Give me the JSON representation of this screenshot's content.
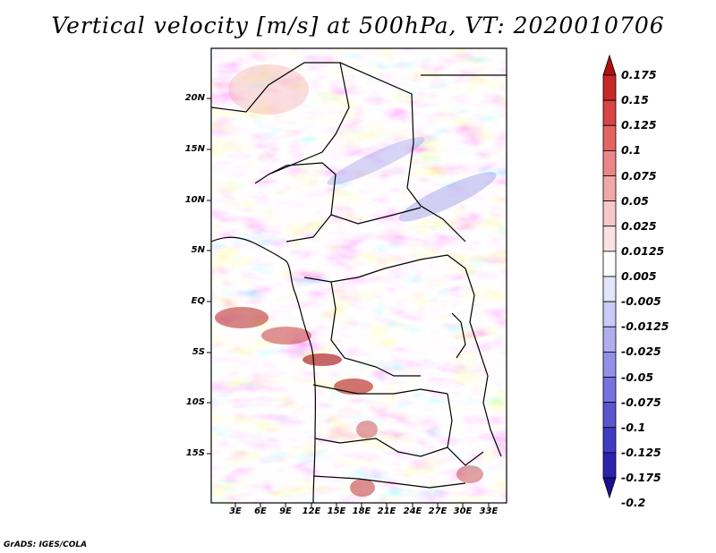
{
  "title": "Vertical velocity [m/s] at 500hPa, VT: 2020010706",
  "credit": "GrADS: IGES/COLA",
  "lat_labels": [
    "20N",
    "15N",
    "10N",
    "5N",
    "EQ",
    "5S",
    "10S",
    "15S"
  ],
  "lon_labels": [
    "3E",
    "6E",
    "9E",
    "12E",
    "15E",
    "18E",
    "21E",
    "24E",
    "27E",
    "30E",
    "33E"
  ],
  "colorbar": {
    "labels": [
      "0.175",
      "0.15",
      "0.125",
      "0.1",
      "0.075",
      "0.05",
      "0.025",
      "0.0125",
      "0.005",
      "-0.005",
      "-0.0125",
      "-0.025",
      "-0.05",
      "-0.075",
      "-0.1",
      "-0.125",
      "-0.175",
      "-0.2"
    ],
    "colors": [
      "#b01010",
      "#c92828",
      "#d94444",
      "#e46464",
      "#ec8686",
      "#f3a8a8",
      "#f8c8c8",
      "#fbe2e2",
      "#ffffff",
      "#e4e4fb",
      "#cccaf6",
      "#b1aef0",
      "#9390e8",
      "#7672de",
      "#5a56d2",
      "#403cc2",
      "#2a24ae",
      "#1a1090"
    ]
  }
}
